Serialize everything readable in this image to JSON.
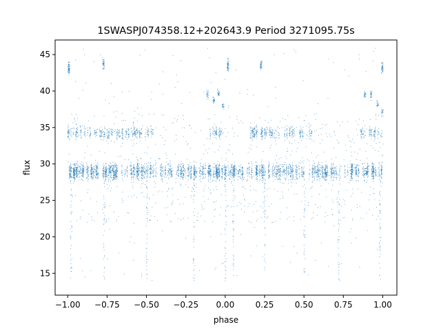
{
  "chart_data": {
    "type": "scatter",
    "title": "1SWASPJ074358.12+202643.9 Period 3271095.75s",
    "xlabel": "phase",
    "ylabel": "flux",
    "xlim": [
      -1.08,
      1.09
    ],
    "ylim": [
      12.0,
      47.0
    ],
    "xticks": [
      -1.0,
      -0.75,
      -0.5,
      -0.25,
      0.0,
      0.25,
      0.5,
      0.75,
      1.0
    ],
    "xtick_labels": [
      "−1.00",
      "−0.75",
      "−0.50",
      "−0.25",
      "0.00",
      "0.25",
      "0.50",
      "0.75",
      "1.00"
    ],
    "yticks": [
      15,
      20,
      25,
      30,
      35,
      40,
      45
    ],
    "ytick_labels": [
      "15",
      "20",
      "25",
      "30",
      "35",
      "40",
      "45"
    ],
    "grid": false,
    "legend": "none",
    "marker_color": "#1f77b4",
    "folded_period_phase": 1.0,
    "series": [
      {
        "clusters": [
          {
            "phase": -0.995,
            "flux": 43.2,
            "spread": 0.9,
            "count": 60
          },
          {
            "phase": -0.775,
            "flux": 43.8,
            "spread": 0.8,
            "count": 40
          },
          {
            "phase": 0.015,
            "flux": 43.6,
            "spread": 0.9,
            "count": 50
          },
          {
            "phase": 0.225,
            "flux": 43.6,
            "spread": 0.7,
            "count": 40
          },
          {
            "phase": -0.115,
            "flux": 39.6,
            "spread": 0.5,
            "count": 25
          },
          {
            "phase": -0.075,
            "flux": 38.8,
            "spread": 0.5,
            "count": 25
          },
          {
            "phase": -0.045,
            "flux": 39.8,
            "spread": 0.6,
            "count": 25
          },
          {
            "phase": -0.015,
            "flux": 38.0,
            "spread": 0.5,
            "count": 20
          },
          {
            "phase": 0.885,
            "flux": 39.6,
            "spread": 0.5,
            "count": 25
          },
          {
            "phase": 0.925,
            "flux": 39.6,
            "spread": 0.6,
            "count": 25
          },
          {
            "phase": 0.965,
            "flux": 38.2,
            "spread": 0.5,
            "count": 20
          },
          {
            "phase": 0.995,
            "flux": 37.2,
            "spread": 0.5,
            "count": 20
          },
          {
            "phase": 0.995,
            "flux": 43.2,
            "spread": 0.9,
            "count": 40
          }
        ],
        "upper_band": {
          "flux": 34.3,
          "spread": 0.8,
          "phase_ranges": [
            [
              -1.0,
              -0.45
            ],
            [
              -0.1,
              0.0
            ],
            [
              0.15,
              0.55
            ],
            [
              0.85,
              1.0
            ]
          ]
        },
        "main_band": {
          "flux": 29.0,
          "spread": 1.1,
          "phase_range": [
            -1.0,
            1.0
          ]
        },
        "scatter_tail": {
          "flux_range": [
            14.0,
            46.0
          ],
          "phase_range": [
            -1.0,
            1.0
          ]
        }
      }
    ]
  }
}
